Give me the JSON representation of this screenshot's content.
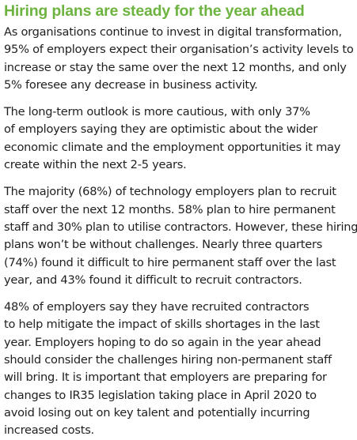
{
  "heading": "Hiring plans are steady for the year ahead",
  "paragraphs": [
    {
      "lines": [
        "As organisations continue to invest in digital transformation,",
        "95% of employers expect their organisation’s activity levels to",
        "increase or stay the same over the next 12 months, and only",
        "5% foresee any decrease in business activity."
      ]
    },
    {
      "lines": [
        "The long-term outlook is more cautious, with only 37%",
        "of employers saying they are optimistic about the wider",
        "economic climate and the employment opportunities it may",
        "create within the next 2-5 years."
      ]
    },
    {
      "lines": [
        "The majority (68%) of technology employers plan to recruit",
        "staff over the next 12 months. 58% plan to hire permanent",
        "staff and 30% plan to utilise contractors. However, these hiring",
        "plans won’t be without challenges. Nearly three quarters",
        "(74%) found it difficult to hire permanent staff over the last",
        "year, and 43% found it difficult to recruit contractors."
      ]
    },
    {
      "lines": [
        "48% of employers say they have recruited contractors",
        "to help mitigate the impact of skills shortages in the last",
        "year. Employers hoping to do so again in the year ahead",
        "should consider the challenges hiring non-permanent staff",
        "will bring. It is important that employers are preparing for",
        "changes to IR35 legislation taking place in April 2020 to",
        "avoid losing out on key talent and potentially incurring",
        "increased costs."
      ]
    }
  ],
  "colors": {
    "heading": "#6db33f",
    "body_text": "#1f1f1f",
    "background": "#ffffff"
  }
}
